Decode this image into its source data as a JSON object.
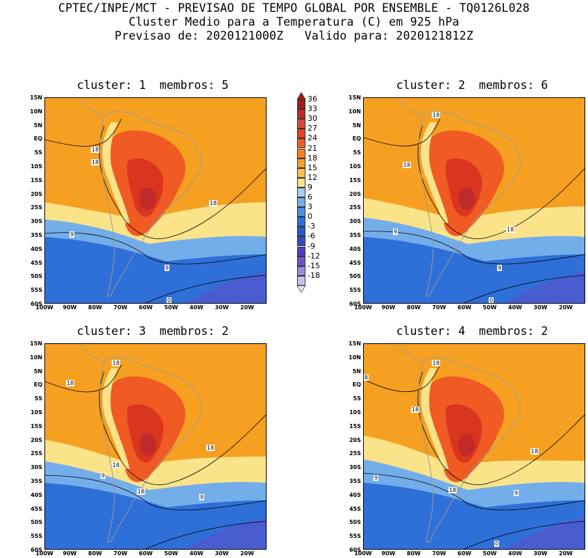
{
  "header": {
    "line1": "CPTEC/INPE/MCT - PREVISAO DE TEMPO GLOBAL POR ENSEMBLE - TQ0126L028",
    "line2": "Cluster Medio para a Temperatura (C) em 925 hPa",
    "line3": "Previsao de: 2020121000Z   Valido para: 2020121812Z"
  },
  "panels": [
    {
      "title": "cluster: 1  membros: 5",
      "contour_labels": [
        "18",
        "18",
        "18",
        "9",
        "9",
        "0"
      ]
    },
    {
      "title": "cluster: 2  membros: 6",
      "contour_labels": [
        "18",
        "18",
        "18",
        "9",
        "9",
        "0"
      ]
    },
    {
      "title": "cluster: 3  membros: 2",
      "contour_labels": [
        "18",
        "18",
        "18",
        "18",
        "18",
        "9",
        "9"
      ]
    },
    {
      "title": "cluster: 4  membros: 2",
      "contour_labels": [
        "8",
        "18",
        "18",
        "18",
        "18",
        "9",
        "9",
        "0"
      ]
    }
  ],
  "lat_labels": [
    "15N",
    "10N",
    "5N",
    "EQ",
    "5S",
    "10S",
    "15S",
    "20S",
    "25S",
    "30S",
    "35S",
    "40S",
    "45S",
    "50S",
    "55S",
    "60S"
  ],
  "lon_labels": [
    "100W",
    "90W",
    "80W",
    "70W",
    "60W",
    "50W",
    "40W",
    "30W",
    "20W"
  ],
  "colorbar": {
    "levels": [
      "36",
      "33",
      "30",
      "27",
      "24",
      "21",
      "18",
      "15",
      "12",
      "9",
      "6",
      "3",
      "0",
      "-3",
      "-6",
      "-9",
      "-12",
      "-15",
      "-18"
    ],
    "colors": [
      "#a01c1c",
      "#c02a2a",
      "#d84a3a",
      "#e8402a",
      "#f05a23",
      "#f5821f",
      "#f5a021",
      "#f8c248",
      "#fbe38a",
      "#a8cff0",
      "#73aeea",
      "#4a8de3",
      "#2f6fd8",
      "#2c58c8",
      "#3a48c0",
      "#5040c0",
      "#6c55cc",
      "#9a8ad8",
      "#c8c0ea"
    ]
  },
  "colors": {
    "hot": "#d9351f",
    "warm": "#f5a021",
    "mild": "#fbe38a",
    "cool": "#73aeea",
    "cold": "#2f6fd8",
    "ocean_deep": "#4a5dd0",
    "land_outline": "#9a9a9a"
  }
}
